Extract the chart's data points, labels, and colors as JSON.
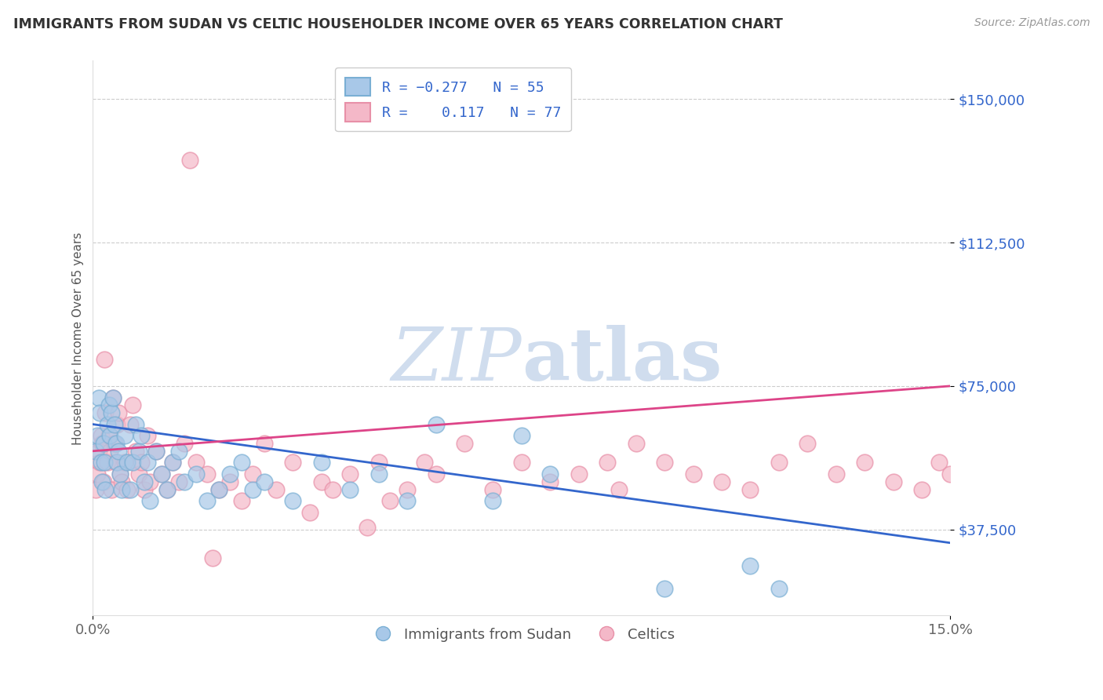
{
  "title": "IMMIGRANTS FROM SUDAN VS CELTIC HOUSEHOLDER INCOME OVER 65 YEARS CORRELATION CHART",
  "source_text": "Source: ZipAtlas.com",
  "ylabel": "Householder Income Over 65 years",
  "ytick_labels": [
    "$37,500",
    "$75,000",
    "$112,500",
    "$150,000"
  ],
  "ytick_values": [
    37500,
    75000,
    112500,
    150000
  ],
  "xlim": [
    0.0,
    15.0
  ],
  "ylim": [
    15000,
    160000
  ],
  "legend_label1": "Immigrants from Sudan",
  "legend_label2": "Celtics",
  "blue_color": "#a8c8e8",
  "pink_color": "#f4b8c8",
  "blue_edge_color": "#7aafd4",
  "pink_edge_color": "#e890a8",
  "blue_line_color": "#3366cc",
  "pink_line_color": "#dd4488",
  "blue_line_x": [
    0,
    15
  ],
  "blue_line_y": [
    65000,
    34000
  ],
  "pink_line_x": [
    0,
    15
  ],
  "pink_line_y": [
    58000,
    75000
  ],
  "blue_x": [
    0.05,
    0.08,
    0.1,
    0.12,
    0.14,
    0.16,
    0.18,
    0.2,
    0.22,
    0.25,
    0.28,
    0.3,
    0.32,
    0.35,
    0.38,
    0.4,
    0.42,
    0.45,
    0.48,
    0.5,
    0.55,
    0.6,
    0.65,
    0.7,
    0.75,
    0.8,
    0.85,
    0.9,
    0.95,
    1.0,
    1.1,
    1.2,
    1.3,
    1.4,
    1.5,
    1.6,
    1.8,
    2.0,
    2.2,
    2.4,
    2.6,
    2.8,
    3.0,
    3.5,
    4.0,
    4.5,
    5.0,
    5.5,
    6.0,
    7.0,
    7.5,
    8.0,
    10.0,
    11.5,
    12.0
  ],
  "blue_y": [
    58000,
    62000,
    72000,
    68000,
    55000,
    50000,
    60000,
    55000,
    48000,
    65000,
    70000,
    62000,
    68000,
    72000,
    65000,
    60000,
    55000,
    58000,
    52000,
    48000,
    62000,
    55000,
    48000,
    55000,
    65000,
    58000,
    62000,
    50000,
    55000,
    45000,
    58000,
    52000,
    48000,
    55000,
    58000,
    50000,
    52000,
    45000,
    48000,
    52000,
    55000,
    48000,
    50000,
    45000,
    55000,
    48000,
    52000,
    45000,
    65000,
    45000,
    62000,
    52000,
    22000,
    28000,
    22000
  ],
  "pink_x": [
    0.05,
    0.08,
    0.1,
    0.12,
    0.14,
    0.16,
    0.18,
    0.2,
    0.22,
    0.25,
    0.28,
    0.3,
    0.32,
    0.35,
    0.38,
    0.4,
    0.42,
    0.45,
    0.48,
    0.5,
    0.55,
    0.6,
    0.65,
    0.7,
    0.75,
    0.8,
    0.85,
    0.9,
    0.95,
    1.0,
    1.1,
    1.2,
    1.3,
    1.4,
    1.5,
    1.6,
    1.8,
    2.0,
    2.2,
    2.4,
    2.6,
    2.8,
    3.0,
    3.2,
    3.5,
    3.8,
    4.0,
    4.2,
    4.5,
    4.8,
    5.0,
    5.2,
    5.5,
    5.8,
    6.0,
    6.5,
    7.0,
    7.5,
    8.0,
    8.5,
    9.0,
    9.2,
    9.5,
    10.0,
    10.5,
    11.0,
    11.5,
    12.0,
    12.5,
    13.0,
    13.5,
    14.0,
    14.5,
    14.8,
    15.0,
    1.7,
    2.1
  ],
  "pink_y": [
    48000,
    52000,
    58000,
    55000,
    62000,
    60000,
    50000,
    82000,
    68000,
    55000,
    62000,
    58000,
    48000,
    72000,
    60000,
    55000,
    65000,
    68000,
    52000,
    50000,
    55000,
    48000,
    65000,
    70000,
    58000,
    52000,
    55000,
    48000,
    62000,
    50000,
    58000,
    52000,
    48000,
    55000,
    50000,
    60000,
    55000,
    52000,
    48000,
    50000,
    45000,
    52000,
    60000,
    48000,
    55000,
    42000,
    50000,
    48000,
    52000,
    38000,
    55000,
    45000,
    48000,
    55000,
    52000,
    60000,
    48000,
    55000,
    50000,
    52000,
    55000,
    48000,
    60000,
    55000,
    52000,
    50000,
    48000,
    55000,
    60000,
    52000,
    55000,
    50000,
    48000,
    55000,
    52000,
    134000,
    30000
  ]
}
